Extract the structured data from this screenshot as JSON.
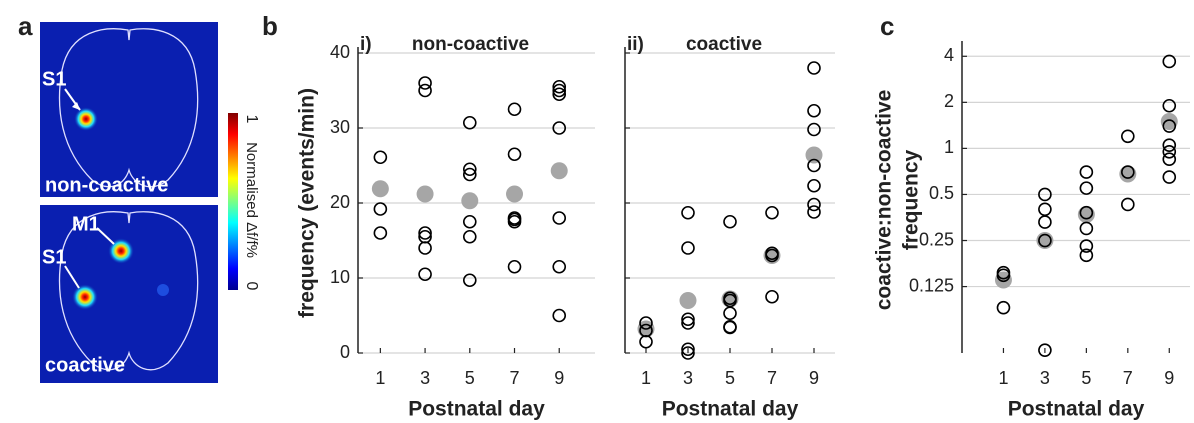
{
  "panel_labels": [
    "a",
    "b",
    "c"
  ],
  "panel_a": {
    "images": [
      {
        "caption": "non-coactive",
        "annotations": [
          "S1"
        ]
      },
      {
        "caption": "coactive",
        "annotations": [
          "M1",
          "S1"
        ]
      }
    ],
    "colorbar": {
      "label": "Normalised Δf/f%",
      "ticks": [
        1,
        0
      ]
    }
  },
  "chart_data": [
    {
      "type": "scatter",
      "panel_number": "i)",
      "title": "non-coactive",
      "xlabel": "Postnatal day",
      "ylabel": [
        "frequency (events/min)"
      ],
      "xlim": [
        0,
        10.6
      ],
      "xticks": [
        1,
        3,
        5,
        7,
        9
      ],
      "ylim": [
        0,
        40
      ],
      "yticks": [
        0,
        10,
        20,
        30,
        40
      ],
      "ytick_labels": true,
      "grid": true,
      "series": [
        {
          "marker": "filled",
          "color": "#a6a6a6",
          "x": [
            1,
            3,
            5,
            7,
            9
          ],
          "values": [
            21.9,
            21.2,
            20.3,
            21.2,
            24.3
          ]
        },
        {
          "marker": "open",
          "color": "#000000",
          "x": [
            1,
            1,
            1,
            3,
            3,
            3,
            3,
            3,
            3,
            5,
            5,
            5,
            5,
            5,
            5,
            7,
            7,
            7,
            7,
            7,
            7,
            9,
            9,
            9,
            9,
            9,
            9,
            9
          ],
          "values": [
            26.1,
            19.2,
            16,
            36,
            35,
            16,
            15.5,
            14,
            10.5,
            30.7,
            24.5,
            23.8,
            17.5,
            15.5,
            9.7,
            32.5,
            26.5,
            18,
            17.8,
            17.5,
            11.5,
            35.5,
            35,
            34.5,
            30,
            18,
            11.5,
            5
          ]
        }
      ]
    },
    {
      "type": "scatter",
      "panel_number": "ii)",
      "title": "coactive",
      "xlabel": "Postnatal day",
      "xlim": [
        0,
        10
      ],
      "xticks": [
        1,
        3,
        5,
        7,
        9
      ],
      "ylim": [
        0,
        40
      ],
      "yticks": [
        0,
        10,
        20,
        30,
        40
      ],
      "ytick_labels": false,
      "grid": true,
      "series": [
        {
          "marker": "filled",
          "color": "#a6a6a6",
          "x": [
            1,
            3,
            5,
            7,
            9
          ],
          "values": [
            3.2,
            7,
            7.2,
            13,
            26.4
          ]
        },
        {
          "marker": "open",
          "color": "#000000",
          "x": [
            1,
            1,
            1,
            3,
            3,
            3,
            3,
            3,
            3,
            5,
            5,
            5,
            5,
            5,
            5,
            7,
            7,
            7,
            7,
            9,
            9,
            9,
            9,
            9,
            9,
            9
          ],
          "values": [
            4,
            3,
            1.5,
            18.7,
            14,
            4.5,
            4,
            0.5,
            0,
            17.5,
            7.3,
            7,
            5.3,
            3.5,
            3.4,
            18.7,
            13.3,
            13,
            7.5,
            38,
            32.3,
            29.8,
            25,
            22.3,
            19.8,
            18.8
          ]
        }
      ]
    },
    {
      "type": "scatter",
      "xlabel": "Postnatal day",
      "ylabel": [
        "coactive:non-coactive",
        "frequency"
      ],
      "xlim": [
        -1,
        10
      ],
      "xticks": [
        1,
        3,
        5,
        7,
        9
      ],
      "yscale": "log",
      "ylim": [
        0.046,
        4.6
      ],
      "yticks": [
        0.125,
        0.25,
        0.5,
        1,
        2,
        4
      ],
      "ytick_labels": true,
      "grid": true,
      "series": [
        {
          "marker": "filled",
          "color": "#a6a6a6",
          "x": [
            1,
            3,
            5,
            7,
            9
          ],
          "values": [
            0.138,
            0.25,
            0.37,
            0.68,
            1.5
          ]
        },
        {
          "marker": "open",
          "color": "#000000",
          "x": [
            1,
            1,
            1,
            3,
            3,
            3,
            3,
            3,
            5,
            5,
            5,
            5,
            5,
            5,
            7,
            7,
            7,
            9,
            9,
            9,
            9,
            9,
            9,
            9
          ],
          "values": [
            0.154,
            0.148,
            0.091,
            0.5,
            0.4,
            0.33,
            0.25,
            0.048,
            0.7,
            0.55,
            0.38,
            0.3,
            0.23,
            0.2,
            1.2,
            0.7,
            0.43,
            3.7,
            1.9,
            1.4,
            1.05,
            0.95,
            0.85,
            0.65
          ]
        }
      ]
    }
  ]
}
